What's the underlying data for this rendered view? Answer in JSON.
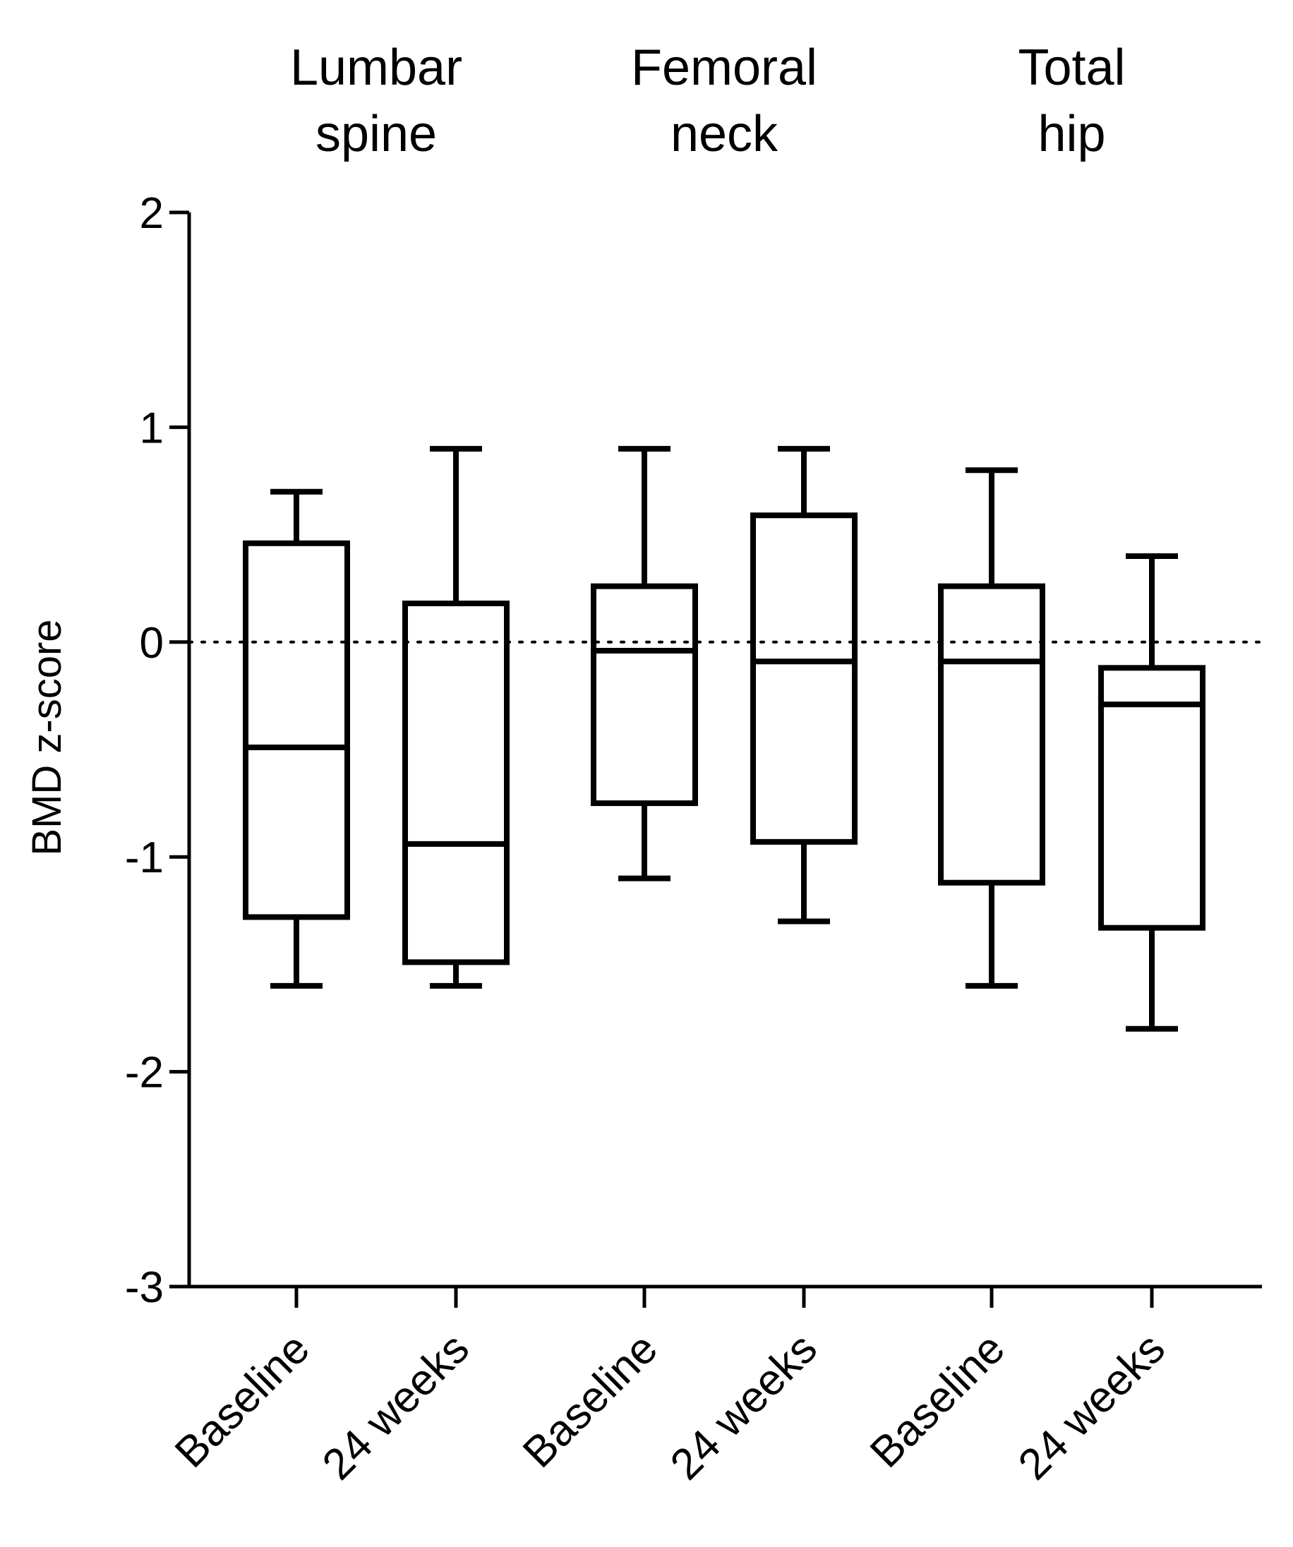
{
  "chart_data": {
    "type": "box",
    "ylabel": "BMD z-score",
    "xlabel": "",
    "ylim": [
      -3,
      2
    ],
    "yticks": [
      -3,
      -2,
      -1,
      0,
      1,
      2
    ],
    "ytick_labels": [
      "-3",
      "-2",
      "-1",
      "0",
      "1",
      "2"
    ],
    "reference_line": {
      "y": 0,
      "style": "dotted"
    },
    "groups": [
      {
        "label": "Lumbar spine",
        "label_lines": [
          "Lumbar",
          "spine"
        ]
      },
      {
        "label": "Femoral neck",
        "label_lines": [
          "Femoral",
          "neck"
        ]
      },
      {
        "label": "Total hip",
        "label_lines": [
          "Total",
          "hip"
        ]
      }
    ],
    "categories": [
      "Baseline",
      "24 weeks",
      "Baseline",
      "24 weeks",
      "Baseline",
      "24 weeks"
    ],
    "boxes": [
      {
        "group": 0,
        "category": "Baseline",
        "min": -1.6,
        "q1": -1.28,
        "median": -0.49,
        "q3": 0.46,
        "max": 0.7
      },
      {
        "group": 0,
        "category": "24 weeks",
        "min": -1.6,
        "q1": -1.49,
        "median": -0.94,
        "q3": 0.18,
        "max": 0.9
      },
      {
        "group": 1,
        "category": "Baseline",
        "min": -1.1,
        "q1": -0.75,
        "median": -0.04,
        "q3": 0.26,
        "max": 0.9
      },
      {
        "group": 1,
        "category": "24 weeks",
        "min": -1.3,
        "q1": -0.93,
        "median": -0.09,
        "q3": 0.59,
        "max": 0.9
      },
      {
        "group": 2,
        "category": "Baseline",
        "min": -1.6,
        "q1": -1.12,
        "median": -0.09,
        "q3": 0.26,
        "max": 0.8
      },
      {
        "group": 2,
        "category": "24 weeks",
        "min": -1.8,
        "q1": -1.33,
        "median": -0.29,
        "q3": -0.12,
        "max": 0.4
      }
    ]
  }
}
